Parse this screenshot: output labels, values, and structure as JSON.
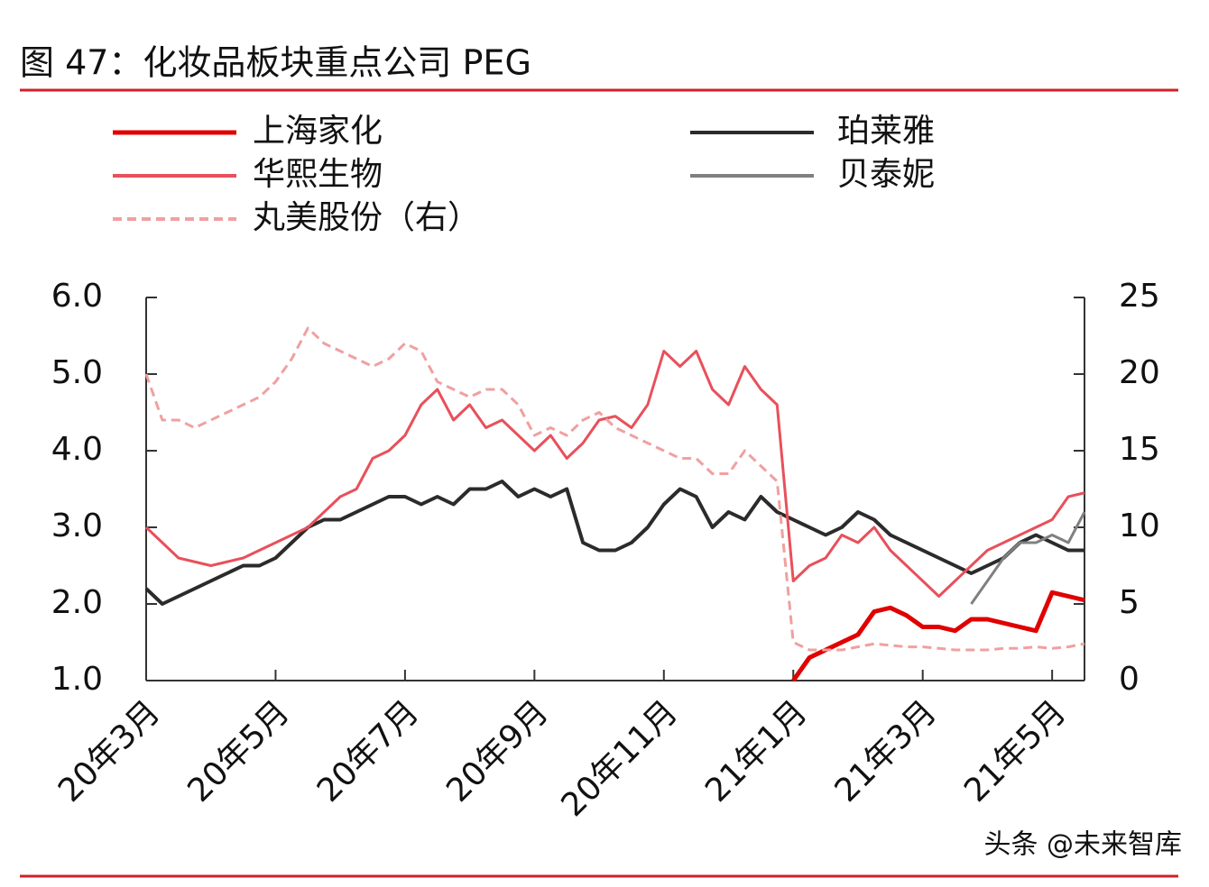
{
  "chart_data": {
    "type": "line",
    "title": "图 47：化妆品板块重点公司 PEG",
    "watermark": "头条 @未来智库",
    "categories": [
      "20年3月",
      null,
      null,
      null,
      null,
      null,
      null,
      null,
      "20年5月",
      null,
      null,
      null,
      null,
      null,
      null,
      null,
      "20年7月",
      null,
      null,
      null,
      null,
      null,
      null,
      null,
      "20年9月",
      null,
      null,
      null,
      null,
      null,
      null,
      null,
      "20年11月",
      null,
      null,
      null,
      null,
      null,
      null,
      null,
      "21年1月",
      null,
      null,
      null,
      null,
      null,
      null,
      null,
      "21年3月",
      null,
      null,
      null,
      null,
      null,
      null,
      null,
      "21年5月",
      null,
      null
    ],
    "ylim": [
      1,
      6
    ],
    "yticks": [
      {
        "value": 1,
        "label": "1.0"
      },
      {
        "value": 2,
        "label": "2.0"
      },
      {
        "value": 3,
        "label": "3.0"
      },
      {
        "value": 4,
        "label": "4.0"
      },
      {
        "value": 5,
        "label": "5.0"
      },
      {
        "value": 6,
        "label": "6.0"
      }
    ],
    "y2lim": [
      0,
      25
    ],
    "y2ticks": [
      0,
      5,
      10,
      15,
      20,
      25
    ],
    "series": [
      {
        "name": "上海家化",
        "color": "#e00000",
        "line_width": 5,
        "values": [
          null,
          null,
          null,
          null,
          null,
          null,
          null,
          null,
          null,
          null,
          null,
          null,
          null,
          null,
          null,
          null,
          null,
          null,
          null,
          null,
          null,
          null,
          null,
          null,
          null,
          null,
          null,
          null,
          null,
          null,
          null,
          null,
          null,
          null,
          null,
          null,
          null,
          null,
          null,
          null,
          1.0,
          1.3,
          1.4,
          1.5,
          1.6,
          1.9,
          1.95,
          1.85,
          1.7,
          1.7,
          1.65,
          1.8,
          1.8,
          1.75,
          1.7,
          1.65,
          2.15,
          2.1,
          2.05
        ]
      },
      {
        "name": "珀莱雅",
        "color": "#2b2b2b",
        "line_width": 4,
        "values": [
          2.2,
          2.0,
          2.1,
          2.2,
          2.3,
          2.4,
          2.5,
          2.5,
          2.6,
          2.8,
          3.0,
          3.1,
          3.1,
          3.2,
          3.3,
          3.4,
          3.4,
          3.3,
          3.4,
          3.3,
          3.5,
          3.5,
          3.6,
          3.4,
          3.5,
          3.4,
          3.5,
          2.8,
          2.7,
          2.7,
          2.8,
          3.0,
          3.3,
          3.5,
          3.4,
          3.0,
          3.2,
          3.1,
          3.4,
          3.2,
          3.1,
          3.0,
          2.9,
          3.0,
          3.2,
          3.1,
          2.9,
          2.8,
          2.7,
          2.6,
          2.5,
          2.4,
          2.5,
          2.6,
          2.8,
          2.9,
          2.8,
          2.7,
          2.7
        ]
      },
      {
        "name": "华熙生物",
        "color": "#e8505b",
        "line_width": 3,
        "values": [
          3.0,
          2.8,
          2.6,
          2.55,
          2.5,
          2.55,
          2.6,
          2.7,
          2.8,
          2.9,
          3.0,
          3.2,
          3.4,
          3.5,
          3.9,
          4.0,
          4.2,
          4.6,
          4.8,
          4.4,
          4.6,
          4.3,
          4.4,
          4.2,
          4.0,
          4.2,
          3.9,
          4.1,
          4.4,
          4.45,
          4.3,
          4.6,
          5.3,
          5.1,
          5.3,
          4.8,
          4.6,
          5.1,
          4.8,
          4.6,
          2.3,
          2.5,
          2.6,
          2.9,
          2.8,
          3.0,
          2.7,
          2.5,
          2.3,
          2.1,
          2.3,
          2.5,
          2.7,
          2.8,
          2.9,
          3.0,
          3.1,
          3.4,
          3.45
        ]
      },
      {
        "name": "贝泰妮",
        "color": "#808080",
        "line_width": 3,
        "values": [
          null,
          null,
          null,
          null,
          null,
          null,
          null,
          null,
          null,
          null,
          null,
          null,
          null,
          null,
          null,
          null,
          null,
          null,
          null,
          null,
          null,
          null,
          null,
          null,
          null,
          null,
          null,
          null,
          null,
          null,
          null,
          null,
          null,
          null,
          null,
          null,
          null,
          null,
          null,
          null,
          null,
          null,
          null,
          null,
          null,
          null,
          null,
          null,
          null,
          null,
          null,
          2.0,
          2.3,
          2.6,
          2.8,
          2.8,
          2.9,
          2.8,
          3.2
        ]
      },
      {
        "name": "丸美股份（右）",
        "color": "#f0a0a0",
        "line_width": 3,
        "dashed": true,
        "axis": "y2",
        "values": [
          20,
          17,
          17,
          16.5,
          17,
          17.5,
          18,
          18.5,
          19.5,
          21,
          23,
          22,
          21.5,
          21,
          20.5,
          21,
          22,
          21.5,
          19.5,
          19,
          18.5,
          19,
          19,
          18,
          16,
          16.5,
          16,
          17,
          17.5,
          16.5,
          16,
          15.5,
          15,
          14.5,
          14.5,
          13.5,
          13.5,
          15,
          14,
          13,
          2.5,
          2,
          2,
          2,
          2.2,
          2.4,
          2.3,
          2.2,
          2.2,
          2.1,
          2,
          2,
          2,
          2.1,
          2.1,
          2.2,
          2.1,
          2.2,
          2.4
        ]
      }
    ]
  }
}
